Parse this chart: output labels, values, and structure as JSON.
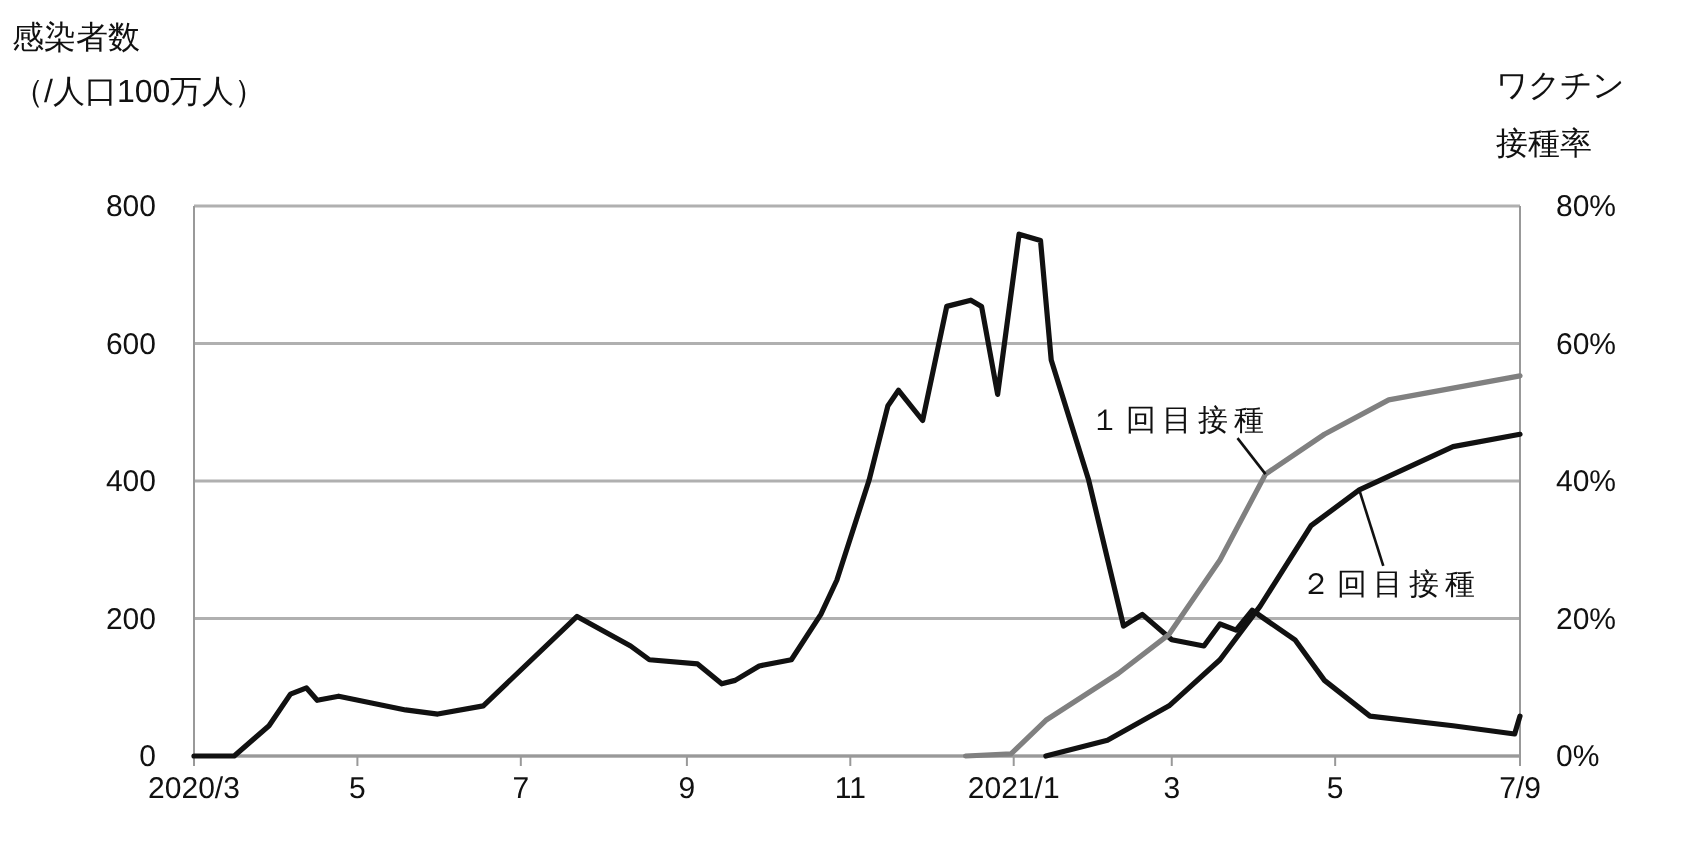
{
  "chart_data": {
    "type": "line",
    "ylabel": "感染者数（/人口100万人）",
    "y2label": "ワクチン接種率",
    "xlim": [
      "2020-03-01",
      "2021-07-09"
    ],
    "xticks": [
      {
        "value": "2020-03-01",
        "label": "2020/3"
      },
      {
        "value": "2020-05-01",
        "label": "5"
      },
      {
        "value": "2020-07-01",
        "label": "7"
      },
      {
        "value": "2020-09-01",
        "label": "9"
      },
      {
        "value": "2020-11-01",
        "label": "11"
      },
      {
        "value": "2021-01-01",
        "label": "2021/1"
      },
      {
        "value": "2021-03-01",
        "label": "3"
      },
      {
        "value": "2021-05-01",
        "label": "5"
      },
      {
        "value": "2021-07-09",
        "label": "7/9"
      }
    ],
    "ylim": [
      0,
      800
    ],
    "yticks": [
      0,
      200,
      400,
      600,
      800
    ],
    "y2lim": [
      0,
      80
    ],
    "y2ticks": [
      {
        "value": 0,
        "label": "0%"
      },
      {
        "value": 20,
        "label": "20%"
      },
      {
        "value": 40,
        "label": "40%"
      },
      {
        "value": 60,
        "label": "60%"
      },
      {
        "value": 80,
        "label": "80%"
      }
    ],
    "grid": "y",
    "marker": "none",
    "line_style": "solid",
    "series": [
      {
        "color": "#111111",
        "x": [
          "2020-03-01",
          "2020-03-16",
          "2020-03-29",
          "2020-04-06",
          "2020-04-12",
          "2020-04-16",
          "2020-04-24",
          "2020-05-19",
          "2020-05-31",
          "2020-06-17",
          "2020-07-22",
          "2020-08-11",
          "2020-08-18",
          "2020-09-05",
          "2020-09-14",
          "2020-09-19",
          "2020-09-28",
          "2020-10-10",
          "2020-10-21",
          "2020-10-27",
          "2020-11-08",
          "2020-11-15",
          "2020-11-19",
          "2020-11-28",
          "2020-12-07",
          "2020-12-16",
          "2020-12-20",
          "2020-12-26",
          "2021-01-03",
          "2021-01-11",
          "2021-01-15",
          "2021-01-29",
          "2021-02-11",
          "2021-02-18",
          "2021-03-01",
          "2021-03-13",
          "2021-03-19",
          "2021-03-25",
          "2021-03-31",
          "2021-04-16",
          "2021-04-27",
          "2021-05-14",
          "2021-06-14",
          "2021-07-07",
          "2021-07-09"
        ],
        "values": [
          0,
          0,
          44,
          90,
          99,
          81,
          87,
          67,
          61,
          73,
          203,
          160,
          140,
          134,
          105,
          110,
          131,
          140,
          206,
          256,
          401,
          509,
          532,
          488,
          654,
          663,
          654,
          526,
          759,
          750,
          576,
          401,
          189,
          206,
          169,
          160,
          192,
          183,
          212,
          169,
          110,
          58,
          44,
          32,
          58
        ]
      },
      {
        "name": "１回目接種",
        "axis": "y2",
        "color": "#808080",
        "x": [
          "2020-12-14",
          "2020-12-31",
          "2021-01-13",
          "2021-02-09",
          "2021-02-28",
          "2021-03-19",
          "2021-04-05",
          "2021-04-27",
          "2021-05-21",
          "2021-07-09"
        ],
        "values": [
          0,
          0.3,
          5.2,
          12,
          17.7,
          28.5,
          41,
          46.8,
          51.8,
          55.3
        ]
      },
      {
        "name": "２回目接種",
        "axis": "y2",
        "color": "#111111",
        "x": [
          "2021-01-13",
          "2021-02-05",
          "2021-02-28",
          "2021-03-19",
          "2021-04-03",
          "2021-04-22",
          "2021-05-10",
          "2021-06-14",
          "2021-07-09"
        ],
        "values": [
          0,
          2.3,
          7.3,
          14,
          21.8,
          33.5,
          38.7,
          45,
          46.8
        ]
      }
    ]
  }
}
